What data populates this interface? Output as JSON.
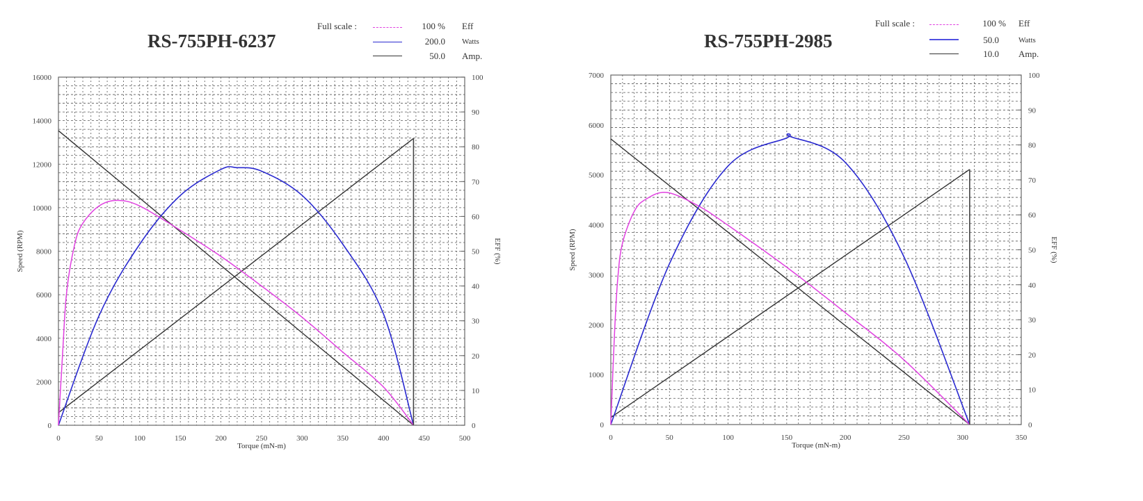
{
  "chart_data": [
    {
      "type": "line",
      "title": "RS-755PH-6237",
      "xlabel": "Torque (mN-m)",
      "ylabel": "Speed (RPM)",
      "y2label": "EFF (%)",
      "xlim": [
        0,
        500
      ],
      "ylim": [
        0,
        16000
      ],
      "y2lim": [
        0,
        100
      ],
      "xticks": [
        0,
        50,
        100,
        150,
        200,
        250,
        300,
        350,
        400,
        450,
        500
      ],
      "yticks": [
        0,
        2000,
        4000,
        6000,
        8000,
        10000,
        12000,
        14000,
        16000
      ],
      "y2ticks": [
        0,
        10,
        20,
        30,
        40,
        50,
        60,
        70,
        80,
        90,
        100
      ],
      "grid": true,
      "legend": {
        "heading": "Full scale :",
        "entries": [
          {
            "name": "Eff",
            "full_scale": "100 %",
            "color": "#e040e0",
            "style": "dash-dot"
          },
          {
            "name": "Watts",
            "full_scale": "200.0",
            "color": "#2a2ad0",
            "style": "solid"
          },
          {
            "name": "Amp.",
            "full_scale": "50.0",
            "color": "#333333",
            "style": "solid"
          }
        ]
      },
      "stall_torque": 437,
      "series": [
        {
          "name": "Speed (RPM)",
          "x": [
            0,
            437
          ],
          "values": [
            13540,
            0
          ]
        },
        {
          "name": "Current (A)",
          "x": [
            0,
            437
          ],
          "values": [
            1.8,
            41.2
          ]
        },
        {
          "name": "Output (W)",
          "x": [
            0,
            50,
            100,
            150,
            200,
            220,
            250,
            300,
            350,
            400,
            437
          ],
          "values": [
            0,
            63,
            104,
            132,
            147,
            148,
            146,
            132,
            104,
            64,
            0
          ]
        },
        {
          "name": "Efficiency (%)",
          "x": [
            0,
            5,
            10,
            20,
            30,
            50,
            72,
            100,
            150,
            200,
            250,
            300,
            350,
            400,
            437
          ],
          "values": [
            0,
            20,
            38,
            52,
            58,
            63,
            64.6,
            63,
            56,
            48.5,
            40,
            31,
            21,
            11,
            0
          ]
        }
      ]
    },
    {
      "type": "line",
      "title": "RS-755PH-2985",
      "xlabel": "Torque (mN-m)",
      "ylabel": "Speed (RPM)",
      "y2label": "EFF (%)",
      "xlim": [
        0,
        350
      ],
      "ylim": [
        0,
        7000
      ],
      "y2lim": [
        0,
        100
      ],
      "xticks": [
        0,
        50,
        100,
        150,
        200,
        250,
        300,
        350
      ],
      "yticks": [
        0,
        1000,
        2000,
        3000,
        4000,
        5000,
        6000,
        7000
      ],
      "y2ticks": [
        0,
        10,
        20,
        30,
        40,
        50,
        60,
        70,
        80,
        90,
        100
      ],
      "grid": true,
      "legend": {
        "heading": "Full scale :",
        "entries": [
          {
            "name": "Eff",
            "full_scale": "100 %",
            "color": "#e040e0",
            "style": "dash-dot"
          },
          {
            "name": "Watts",
            "full_scale": "50.0",
            "color": "#2a2ad0",
            "style": "solid"
          },
          {
            "name": "Amp.",
            "full_scale": "10.0",
            "color": "#333333",
            "style": "solid"
          }
        ]
      },
      "stall_torque": 306,
      "series": [
        {
          "name": "Speed (RPM)",
          "x": [
            0,
            306
          ],
          "values": [
            5720,
            0
          ]
        },
        {
          "name": "Current (A)",
          "x": [
            0,
            306
          ],
          "values": [
            0.2,
            7.3
          ]
        },
        {
          "name": "Output (W)",
          "x": [
            0,
            50,
            100,
            150,
            153,
            200,
            250,
            306
          ],
          "values": [
            0,
            23,
            37,
            41,
            41.2,
            37.5,
            24,
            0
          ]
        },
        {
          "name": "Efficiency (%)",
          "x": [
            0,
            3,
            6,
            10,
            20,
            30,
            48,
            75,
            100,
            150,
            200,
            250,
            306
          ],
          "values": [
            0,
            25,
            42,
            52,
            61,
            64.5,
            66.4,
            62.5,
            57,
            45,
            32,
            18.5,
            0
          ]
        }
      ]
    }
  ]
}
